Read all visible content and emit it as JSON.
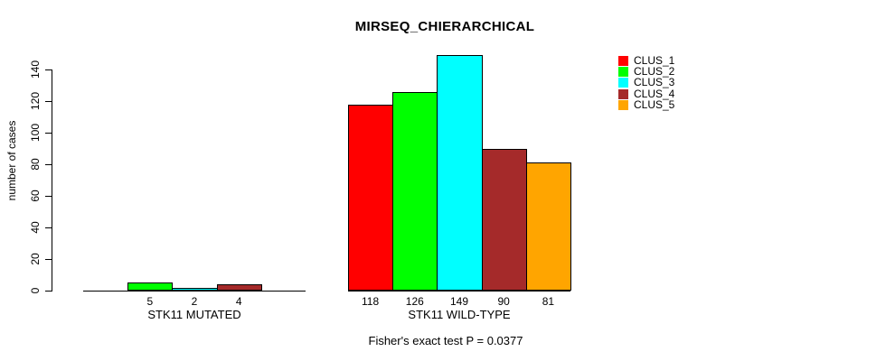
{
  "page": {
    "background": "#FFFFFF"
  },
  "chart_data": {
    "type": "bar",
    "title": "MIRSEQ_CHIERARCHICAL",
    "ylabel": "number of cases",
    "xlabel": "",
    "ylim": [
      0,
      140
    ],
    "yticks": [
      0,
      20,
      40,
      60,
      80,
      100,
      120,
      140
    ],
    "grid": false,
    "legend_position": "right",
    "bar_border_color": "#000000",
    "series": [
      {
        "name": "CLUS_1",
        "color": "#FF0000"
      },
      {
        "name": "CLUS_2",
        "color": "#00FF00"
      },
      {
        "name": "CLUS_3",
        "color": "#00FFFF"
      },
      {
        "name": "CLUS_4",
        "color": "#A52A2A"
      },
      {
        "name": "CLUS_5",
        "color": "#FFA500"
      }
    ],
    "groups": [
      {
        "label": "STK11 MUTATED",
        "values": [
          0,
          5,
          2,
          4,
          0
        ],
        "bar_labels": [
          "",
          "5",
          "2",
          "4",
          ""
        ]
      },
      {
        "label": "STK11 WILD-TYPE",
        "values": [
          118,
          126,
          149,
          90,
          81
        ],
        "bar_labels": [
          "118",
          "126",
          "149",
          "90",
          "81"
        ]
      }
    ],
    "footnote": "Fisher's exact test P = 0.0377"
  }
}
